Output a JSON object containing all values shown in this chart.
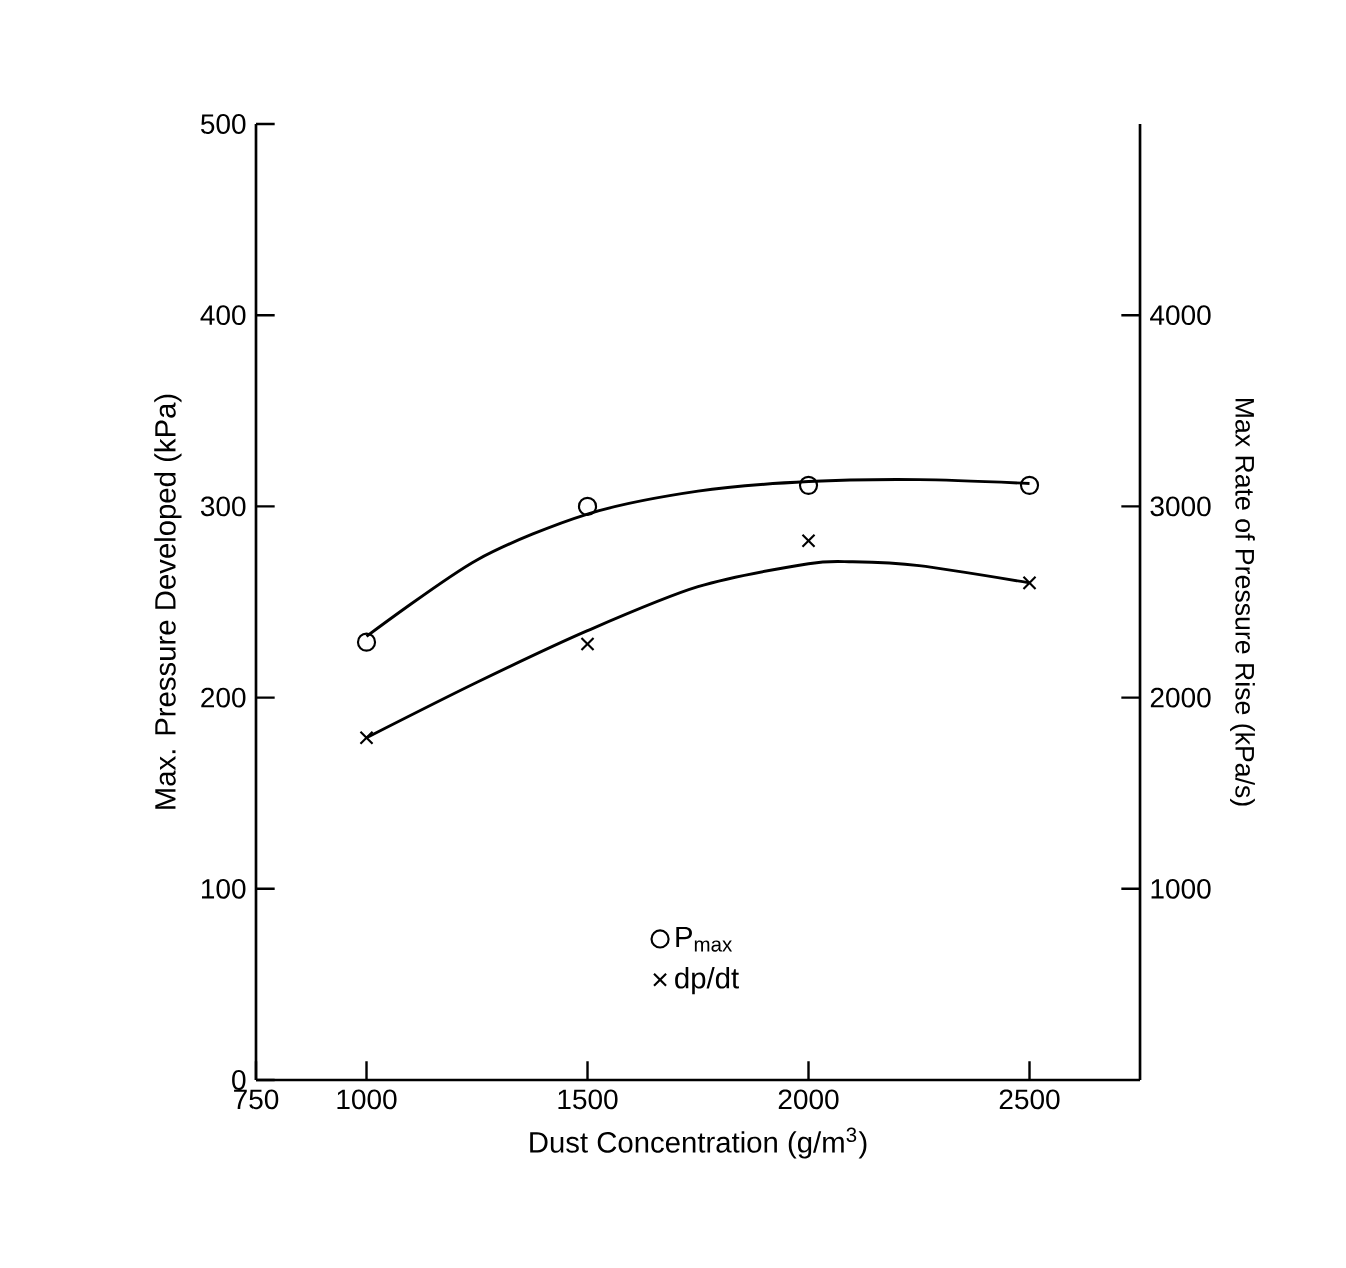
{
  "chart_data": {
    "type": "line",
    "xlabel": "Dust Concentration (g/m$^{3}$)",
    "ylabel": "Max. Pressure Developed (kPa)",
    "y2label": "Max Rate of Pressure Rise (kPa/s)",
    "xlim": [
      750,
      2750
    ],
    "xticks": [
      750,
      1000,
      1500,
      2000,
      2500
    ],
    "ylim": [
      0,
      500
    ],
    "yticks": [
      0,
      100,
      200,
      300,
      400,
      500
    ],
    "y2lim": [
      0,
      5000
    ],
    "y2ticks": [
      1000,
      2000,
      3000,
      4000
    ],
    "legend": "bottom",
    "grid": false,
    "series": [
      {
        "name": "P$_{max}$",
        "type": "scatter",
        "marker": "circle",
        "color": "#000000",
        "x": [
          1000,
          1500,
          2000,
          2500
        ],
        "values": [
          229,
          300,
          311,
          311
        ]
      },
      {
        "name": "dp/dt",
        "type": "scatter",
        "marker": "cross",
        "axis": "y2",
        "color": "#000000",
        "x": [
          1000,
          1500,
          2000,
          2500
        ],
        "values": [
          1790,
          2280,
          2820,
          2600
        ]
      },
      {
        "type": "line",
        "marker": "none",
        "color": "#000000",
        "x": [
          1000,
          1250,
          1500,
          1750,
          2000,
          2250,
          2500
        ],
        "values": [
          232,
          272,
          296,
          308,
          313,
          314,
          312
        ]
      },
      {
        "type": "line",
        "marker": "none",
        "axis": "y2",
        "color": "#000000",
        "x": [
          1000,
          1250,
          1500,
          1750,
          2000,
          2100,
          2250,
          2500
        ],
        "values": [
          1790,
          2080,
          2350,
          2580,
          2700,
          2710,
          2690,
          2600
        ]
      }
    ]
  }
}
